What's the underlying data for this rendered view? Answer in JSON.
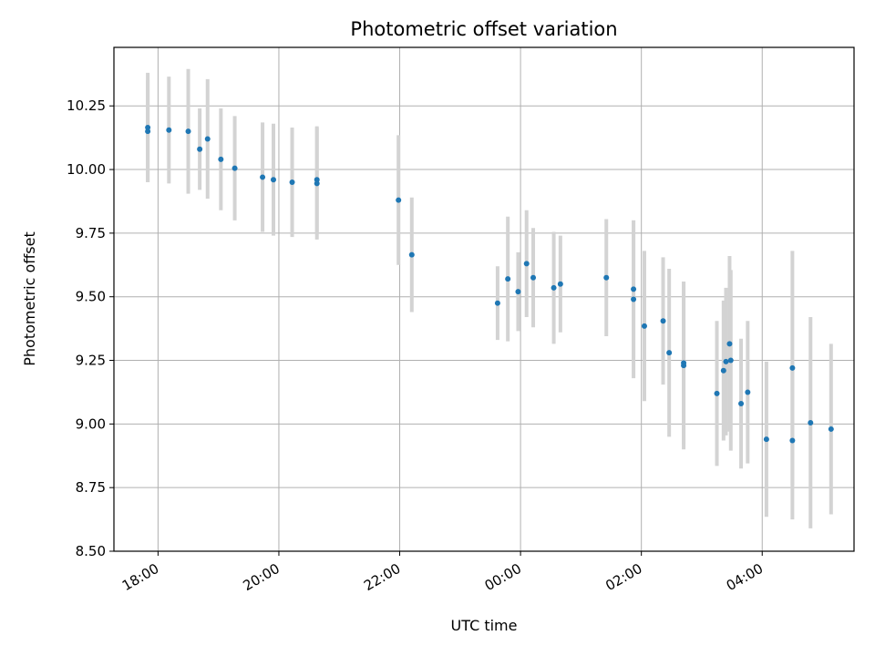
{
  "chart_data": {
    "type": "scatter",
    "title": "Photometric offset variation",
    "xlabel": "UTC time",
    "ylabel": "Photometric offset",
    "x_unit": "hours after 18:00 UTC",
    "xlim": [
      -0.73,
      11.52
    ],
    "ylim": [
      8.5,
      10.48
    ],
    "grid": true,
    "point_color": "#1f77b4",
    "errorbar_color": "#d3d3d3",
    "x_tick_labels": [
      "18:00",
      "20:00",
      "22:00",
      "00:00",
      "02:00",
      "04:00"
    ],
    "y_tick_labels": [
      "8.50",
      "8.75",
      "9.00",
      "9.25",
      "9.50",
      "9.75",
      "10.00",
      "10.25"
    ],
    "points": [
      {
        "x": -0.17,
        "y": 10.165,
        "err": 0.215
      },
      {
        "x": -0.17,
        "y": 10.15,
        "err": 0.2
      },
      {
        "x": 0.18,
        "y": 10.155,
        "err": 0.21
      },
      {
        "x": 0.5,
        "y": 10.15,
        "err": 0.245
      },
      {
        "x": 0.69,
        "y": 10.08,
        "err": 0.16
      },
      {
        "x": 0.82,
        "y": 10.12,
        "err": 0.235
      },
      {
        "x": 1.04,
        "y": 10.04,
        "err": 0.2
      },
      {
        "x": 1.27,
        "y": 10.005,
        "err": 0.205
      },
      {
        "x": 1.73,
        "y": 9.97,
        "err": 0.215
      },
      {
        "x": 1.91,
        "y": 9.96,
        "err": 0.22
      },
      {
        "x": 2.22,
        "y": 9.95,
        "err": 0.215
      },
      {
        "x": 2.63,
        "y": 9.96,
        "err": 0.21
      },
      {
        "x": 2.63,
        "y": 9.945,
        "err": 0.22
      },
      {
        "x": 3.98,
        "y": 9.88,
        "err": 0.255
      },
      {
        "x": 4.2,
        "y": 9.665,
        "err": 0.225
      },
      {
        "x": 5.62,
        "y": 9.475,
        "err": 0.145
      },
      {
        "x": 5.79,
        "y": 9.57,
        "err": 0.245
      },
      {
        "x": 5.96,
        "y": 9.52,
        "err": 0.155
      },
      {
        "x": 6.1,
        "y": 9.63,
        "err": 0.21
      },
      {
        "x": 6.21,
        "y": 9.575,
        "err": 0.195
      },
      {
        "x": 6.55,
        "y": 9.535,
        "err": 0.22
      },
      {
        "x": 6.66,
        "y": 9.55,
        "err": 0.19
      },
      {
        "x": 7.42,
        "y": 9.575,
        "err": 0.23
      },
      {
        "x": 7.87,
        "y": 9.53,
        "err": 0.27
      },
      {
        "x": 7.87,
        "y": 9.49,
        "err": 0.31
      },
      {
        "x": 8.05,
        "y": 9.385,
        "err": 0.295
      },
      {
        "x": 8.36,
        "y": 9.405,
        "err": 0.25
      },
      {
        "x": 8.46,
        "y": 9.28,
        "err": 0.33
      },
      {
        "x": 8.7,
        "y": 9.24,
        "err": 0.32
      },
      {
        "x": 8.7,
        "y": 9.23,
        "err": 0.33
      },
      {
        "x": 9.25,
        "y": 9.12,
        "err": 0.285
      },
      {
        "x": 9.36,
        "y": 9.21,
        "err": 0.275
      },
      {
        "x": 9.4,
        "y": 9.245,
        "err": 0.29
      },
      {
        "x": 9.46,
        "y": 9.315,
        "err": 0.345
      },
      {
        "x": 9.48,
        "y": 9.25,
        "err": 0.355
      },
      {
        "x": 9.65,
        "y": 9.08,
        "err": 0.255
      },
      {
        "x": 9.76,
        "y": 9.125,
        "err": 0.28
      },
      {
        "x": 10.07,
        "y": 8.94,
        "err": 0.305
      },
      {
        "x": 10.5,
        "y": 8.935,
        "err": 0.31
      },
      {
        "x": 10.5,
        "y": 9.22,
        "err": 0.46
      },
      {
        "x": 10.8,
        "y": 9.005,
        "err": 0.415
      },
      {
        "x": 11.14,
        "y": 8.98,
        "err": 0.335
      }
    ]
  }
}
